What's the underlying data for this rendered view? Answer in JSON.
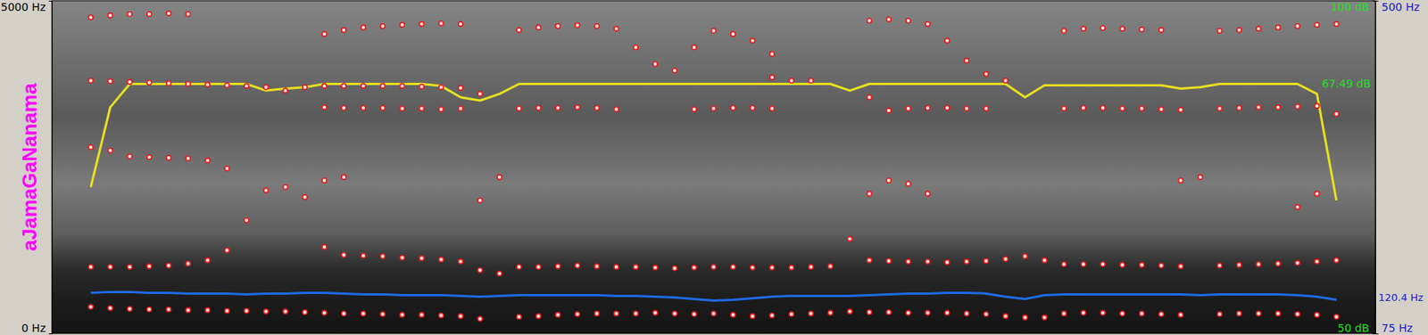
{
  "chart_data": [
    {
      "type": "scatter",
      "title": "aJamaGaNanama",
      "marker": "circle",
      "color": "#e81818",
      "tick_labels": "y",
      "x": [
        0.05,
        0.075,
        0.1,
        0.125,
        0.15,
        0.175,
        0.2,
        0.225,
        0.25,
        0.275,
        0.3,
        0.325,
        0.35,
        0.375,
        0.4,
        0.425,
        0.45,
        0.475,
        0.5,
        0.525,
        0.55,
        0.575,
        0.6,
        0.625,
        0.65,
        0.675,
        0.7,
        0.725,
        0.75,
        0.775,
        0.8,
        0.825,
        0.85,
        0.875,
        0.9,
        0.925,
        0.95,
        0.975,
        1.0,
        1.025,
        1.05,
        1.075,
        1.1,
        1.125,
        1.15,
        1.175,
        1.2,
        1.225,
        1.25,
        1.275,
        1.3,
        1.325,
        1.35,
        1.375,
        1.4,
        1.425,
        1.45,
        1.475,
        1.5,
        1.525,
        1.55,
        1.575,
        1.6,
        1.625,
        1.65
      ],
      "xlim": [
        0,
        1.7
      ],
      "ylim": [
        0,
        5000
      ],
      "yticks": [
        {
          "value": 0,
          "label": "0 Hz"
        },
        {
          "value": 5000,
          "label": "5000 Hz"
        }
      ],
      "series": [
        {
          "values": [
            400,
            380,
            370,
            360,
            360,
            350,
            350,
            340,
            340,
            330,
            330,
            320,
            310,
            300,
            300,
            290,
            280,
            280,
            270,
            260,
            220,
            null,
            250,
            260,
            280,
            290,
            300,
            300,
            300,
            310,
            300,
            290,
            300,
            280,
            260,
            270,
            290,
            300,
            310,
            330,
            320,
            320,
            310,
            310,
            310,
            300,
            290,
            260,
            240,
            240,
            300,
            310,
            310,
            300,
            300,
            290,
            280,
            null,
            290,
            300,
            300,
            300,
            290,
            280,
            250
          ]
        },
        {
          "values": [
            1000,
            1000,
            1000,
            1010,
            1020,
            1050,
            1100,
            1250,
            1700,
            2150,
            2200,
            2050,
            1300,
            1180,
            1170,
            1160,
            1140,
            1130,
            1110,
            1080,
            950,
            900,
            1000,
            1000,
            1010,
            1020,
            1010,
            1000,
            1000,
            990,
            980,
            990,
            1000,
            1000,
            990,
            990,
            990,
            1000,
            1010,
            1420,
            1100,
            1090,
            1080,
            1080,
            1070,
            1080,
            1090,
            1120,
            1160,
            1100,
            1040,
            1040,
            1040,
            1030,
            1030,
            1020,
            1010,
            null,
            1020,
            1030,
            1040,
            1050,
            1060,
            1080,
            1100
          ]
        },
        {
          "values": [
            2800,
            2750,
            2660,
            2650,
            2640,
            2630,
            2600,
            2480,
            null,
            null,
            null,
            null,
            2300,
            2350,
            null,
            null,
            null,
            null,
            null,
            null,
            2000,
            2350,
            null,
            null,
            null,
            null,
            null,
            null,
            null,
            null,
            null,
            null,
            null,
            null,
            null,
            null,
            null,
            null,
            null,
            null,
            2100,
            2300,
            2250,
            2100,
            null,
            null,
            null,
            null,
            null,
            null,
            null,
            null,
            null,
            null,
            null,
            null,
            2300,
            2350,
            null,
            null,
            null,
            null,
            1900,
            2100,
            null
          ]
        },
        {
          "values": [
            null,
            null,
            null,
            null,
            null,
            null,
            null,
            null,
            null,
            null,
            null,
            null,
            3400,
            3390,
            3390,
            3390,
            3380,
            3380,
            3370,
            3380,
            null,
            null,
            3380,
            3390,
            3390,
            3400,
            3390,
            3370,
            null,
            null,
            null,
            3370,
            3380,
            3390,
            3390,
            3380,
            null,
            null,
            null,
            null,
            3550,
            3350,
            3380,
            3390,
            3390,
            3380,
            3380,
            null,
            null,
            null,
            3380,
            3390,
            3390,
            3380,
            3380,
            3370,
            3360,
            null,
            3380,
            3390,
            3400,
            3400,
            3410,
            3420,
            3300
          ]
        },
        {
          "values": [
            3800,
            3790,
            3780,
            3770,
            3760,
            3750,
            3740,
            3730,
            3720,
            3700,
            3650,
            3700,
            3720,
            3720,
            3720,
            3720,
            3720,
            3710,
            3700,
            3690,
            3600,
            null,
            null,
            null,
            null,
            null,
            null,
            null,
            null,
            null,
            null,
            null,
            null,
            null,
            null,
            3850,
            3800,
            3800,
            null,
            null,
            null,
            null,
            null,
            null,
            null,
            null,
            null,
            null,
            null,
            null,
            null,
            null,
            null,
            null,
            null,
            null,
            null,
            null,
            null,
            null,
            null,
            null,
            null,
            null,
            null
          ]
        },
        {
          "values": [
            4750,
            4780,
            4800,
            4800,
            4810,
            4800,
            null,
            null,
            null,
            null,
            null,
            null,
            4500,
            4560,
            4600,
            4620,
            4640,
            4650,
            4660,
            4650,
            null,
            null,
            4560,
            4600,
            4620,
            4630,
            4620,
            4580,
            4300,
            4050,
            3950,
            4300,
            4550,
            4500,
            4400,
            4200,
            null,
            null,
            null,
            null,
            4700,
            4720,
            4700,
            4650,
            4400,
            4100,
            3900,
            3800,
            null,
            null,
            4550,
            4580,
            4590,
            4580,
            4570,
            4560,
            null,
            null,
            4550,
            4560,
            4580,
            4600,
            4620,
            4640,
            4650
          ]
        }
      ]
    },
    {
      "type": "line",
      "color": "#1e6be6",
      "line_style": "solid",
      "tick_labels": "y",
      "x": [
        0.05,
        0.075,
        0.1,
        0.125,
        0.15,
        0.175,
        0.2,
        0.225,
        0.25,
        0.275,
        0.3,
        0.325,
        0.35,
        0.375,
        0.4,
        0.425,
        0.45,
        0.475,
        0.5,
        0.525,
        0.55,
        0.575,
        0.6,
        0.625,
        0.65,
        0.675,
        0.7,
        0.725,
        0.75,
        0.775,
        0.8,
        0.825,
        0.85,
        0.875,
        0.9,
        0.925,
        0.95,
        0.975,
        1.0,
        1.025,
        1.05,
        1.075,
        1.1,
        1.125,
        1.15,
        1.175,
        1.2,
        1.225,
        1.25,
        1.275,
        1.3,
        1.325,
        1.35,
        1.375,
        1.4,
        1.425,
        1.45,
        1.475,
        1.5,
        1.525,
        1.55,
        1.575,
        1.6,
        1.625,
        1.65
      ],
      "xlim": [
        0,
        1.7
      ],
      "ylim": [
        75,
        500
      ],
      "yticks": [
        {
          "value": 75,
          "label": "75 Hz"
        },
        {
          "value": 500,
          "label": "500 Hz"
        }
      ],
      "values": [
        127,
        128,
        128,
        127,
        127,
        126,
        126,
        126,
        125,
        126,
        126,
        127,
        127,
        126,
        125,
        125,
        124,
        124,
        124,
        123,
        122,
        123,
        124,
        124,
        124,
        124,
        124,
        123,
        123,
        122,
        121,
        119,
        117,
        118,
        120,
        122,
        123,
        123,
        123,
        123,
        124,
        125,
        126,
        126,
        127,
        127,
        126,
        122,
        119,
        124,
        125,
        125,
        125,
        125,
        125,
        125,
        125,
        124,
        125,
        125,
        125,
        125,
        124,
        122,
        118
      ],
      "annotations": [
        {
          "text": "120.4 Hz",
          "y": 120.4
        }
      ]
    },
    {
      "type": "line",
      "color": "#e8e020",
      "line_style": "solid",
      "tick_labels": "y",
      "x": [
        0.05,
        0.075,
        0.1,
        0.125,
        0.15,
        0.175,
        0.2,
        0.225,
        0.25,
        0.275,
        0.3,
        0.325,
        0.35,
        0.375,
        0.4,
        0.425,
        0.45,
        0.475,
        0.5,
        0.525,
        0.55,
        0.575,
        0.6,
        0.625,
        0.65,
        0.675,
        0.7,
        0.725,
        0.75,
        0.775,
        0.8,
        0.825,
        0.85,
        0.875,
        0.9,
        0.925,
        0.95,
        0.975,
        1.0,
        1.025,
        1.05,
        1.075,
        1.1,
        1.125,
        1.15,
        1.175,
        1.2,
        1.225,
        1.25,
        1.275,
        1.3,
        1.325,
        1.35,
        1.375,
        1.4,
        1.425,
        1.45,
        1.475,
        1.5,
        1.525,
        1.55,
        1.575,
        1.6,
        1.625,
        1.65
      ],
      "xlim": [
        0,
        1.7
      ],
      "ylim": [
        50,
        100
      ],
      "yticks": [
        {
          "value": 50,
          "label": "50 dB"
        },
        {
          "value": 100,
          "label": "100 dB"
        }
      ],
      "values": [
        72,
        84,
        87.5,
        87.5,
        87.5,
        87.5,
        87.5,
        87.5,
        87.5,
        86.5,
        86.8,
        87,
        87.5,
        87.5,
        87.5,
        87.5,
        87.5,
        87.5,
        87.2,
        85.5,
        85,
        86,
        87.5,
        87.5,
        87.5,
        87.5,
        87.5,
        87.5,
        87.5,
        87.5,
        87.5,
        87.5,
        87.5,
        87.5,
        87.5,
        87.5,
        87.5,
        87.5,
        87.5,
        86.5,
        87.5,
        87.5,
        87.5,
        87.5,
        87.5,
        87.5,
        87.5,
        87.5,
        85.5,
        87.3,
        87.3,
        87.3,
        87.3,
        87.3,
        87.3,
        87.3,
        86.8,
        87,
        87.5,
        87.5,
        87.5,
        87.5,
        87.5,
        86,
        70
      ],
      "annotations": [
        {
          "text": "67.49 dB"
        }
      ]
    }
  ]
}
